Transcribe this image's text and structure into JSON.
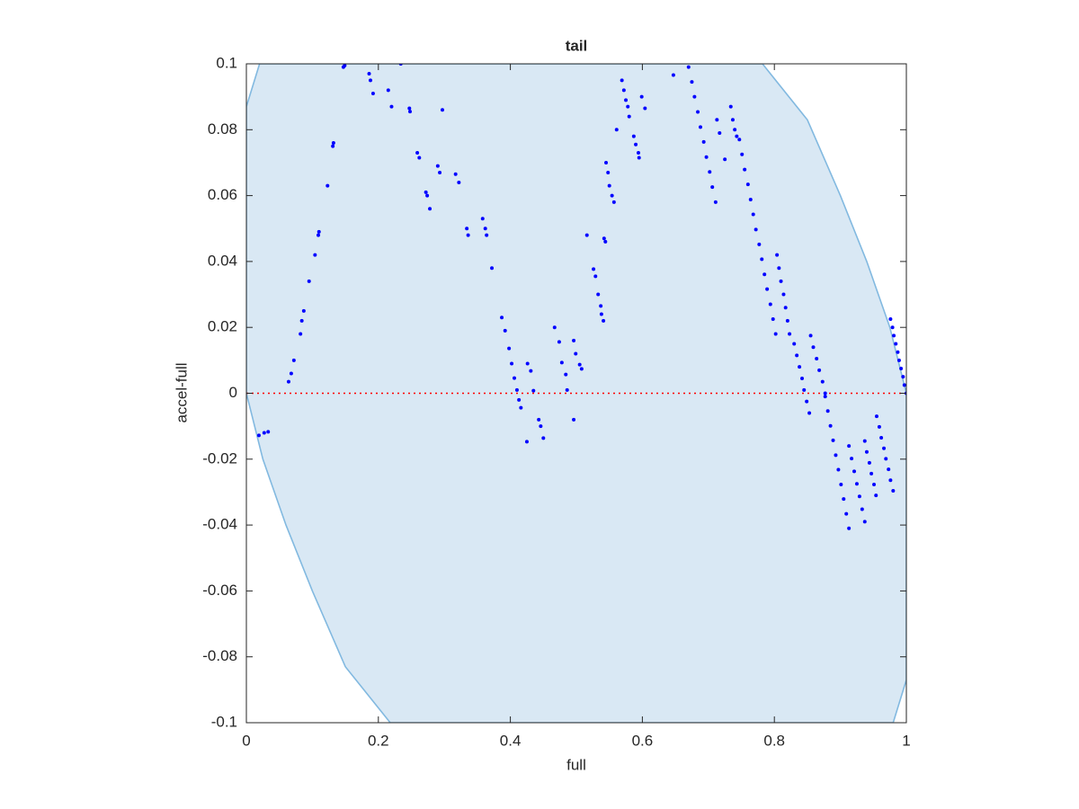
{
  "chart_data": {
    "type": "scatter",
    "title": "tail",
    "x_label": "full",
    "y_label": "accel-full",
    "xlim": [
      0,
      1
    ],
    "ylim": [
      -0.1,
      0.1
    ],
    "xticks": [
      0,
      0.2,
      0.4,
      0.6,
      0.8,
      1
    ],
    "yticks": [
      -0.1,
      -0.08,
      -0.06,
      -0.04,
      -0.02,
      0,
      0.02,
      0.04,
      0.06,
      0.08,
      0.1
    ],
    "color": "#0000ff",
    "region": {
      "color": "#d9e8f4",
      "edge_color": "#82b9e0",
      "x": [
        0.02,
        0.782,
        0.85,
        0.9,
        0.94,
        0.975,
        1,
        1,
        0.98,
        0.218,
        0.15,
        0.1,
        0.06,
        0.025,
        0,
        0
      ],
      "y": [
        0.1,
        0.1,
        0.083,
        0.06,
        0.04,
        0.02,
        0,
        -0.087,
        -0.1,
        -0.1,
        -0.083,
        -0.06,
        -0.04,
        -0.02,
        0,
        0.087
      ]
    },
    "reference_line": {
      "y": 0,
      "color": "#ff0000"
    },
    "x": [
      0.019,
      0.027,
      0.033,
      0.064,
      0.068,
      0.072,
      0.082,
      0.084,
      0.087,
      0.095,
      0.104,
      0.109,
      0.11,
      0.123,
      0.131,
      0.132,
      0.147,
      0.149,
      0.186,
      0.188,
      0.192,
      0.215,
      0.22,
      0.234,
      0.247,
      0.248,
      0.259,
      0.262,
      0.272,
      0.274,
      0.278,
      0.29,
      0.293,
      0.297,
      0.317,
      0.322,
      0.334,
      0.336,
      0.358,
      0.362,
      0.364,
      0.372,
      0.387,
      0.392,
      0.398,
      0.402,
      0.406,
      0.41,
      0.413,
      0.416,
      0.426,
      0.431,
      0.435,
      0.425,
      0.443,
      0.446,
      0.45,
      0.467,
      0.474,
      0.478,
      0.484,
      0.486,
      0.496,
      0.499,
      0.505,
      0.508,
      0.496,
      0.516,
      0.526,
      0.529,
      0.533,
      0.537,
      0.538,
      0.541,
      0.542,
      0.544,
      0.545,
      0.548,
      0.55,
      0.554,
      0.557,
      0.561,
      0.569,
      0.572,
      0.575,
      0.578,
      0.58,
      0.587,
      0.59,
      0.594,
      0.595,
      0.599,
      0.604,
      0.647,
      0.67,
      0.675,
      0.679,
      0.684,
      0.688,
      0.693,
      0.697,
      0.702,
      0.706,
      0.711,
      0.713,
      0.717,
      0.725,
      0.734,
      0.737,
      0.74,
      0.743,
      0.747,
      0.751,
      0.755,
      0.76,
      0.764,
      0.768,
      0.772,
      0.777,
      0.781,
      0.785,
      0.789,
      0.794,
      0.798,
      0.802,
      0.804,
      0.807,
      0.81,
      0.814,
      0.817,
      0.82,
      0.823,
      0.83,
      0.834,
      0.838,
      0.842,
      0.845,
      0.849,
      0.853,
      0.855,
      0.859,
      0.864,
      0.868,
      0.873,
      0.877,
      0.877,
      0.881,
      0.885,
      0.889,
      0.893,
      0.897,
      0.901,
      0.905,
      0.909,
      0.913,
      0.913,
      0.917,
      0.921,
      0.925,
      0.929,
      0.933,
      0.937,
      0.937,
      0.94,
      0.944,
      0.947,
      0.951,
      0.954,
      0.955,
      0.959,
      0.962,
      0.966,
      0.969,
      0.973,
      0.976,
      0.98,
      0.976,
      0.979,
      0.981,
      0.984,
      0.987,
      0.989,
      0.992,
      0.995,
      0.997,
      1.0
    ],
    "values": [
      -0.0128,
      -0.012,
      -0.0117,
      0.0035,
      0.006,
      0.01,
      0.018,
      0.022,
      0.025,
      0.034,
      0.042,
      0.048,
      0.049,
      0.063,
      0.075,
      0.076,
      0.099,
      0.0995,
      0.097,
      0.095,
      0.091,
      0.092,
      0.087,
      0.1,
      0.0865,
      0.0855,
      0.073,
      0.0715,
      0.061,
      0.06,
      0.056,
      0.069,
      0.067,
      0.086,
      0.0665,
      0.064,
      0.05,
      0.048,
      0.053,
      0.05,
      0.048,
      0.038,
      0.023,
      0.019,
      0.0136,
      0.009,
      0.0046,
      0.001,
      -0.002,
      -0.0044,
      0.009,
      0.0068,
      0.0008,
      -0.0147,
      -0.008,
      -0.01,
      -0.0136,
      0.02,
      0.0156,
      0.0093,
      0.0057,
      0.001,
      0.016,
      0.012,
      0.0087,
      0.0074,
      -0.008,
      0.048,
      0.0377,
      0.0355,
      0.03,
      0.0265,
      0.024,
      0.022,
      0.047,
      0.046,
      0.07,
      0.067,
      0.063,
      0.06,
      0.058,
      0.08,
      0.095,
      0.092,
      0.089,
      0.087,
      0.084,
      0.078,
      0.0755,
      0.073,
      0.0715,
      0.09,
      0.0865,
      0.0966,
      0.099,
      0.0945,
      0.09,
      0.0854,
      0.0808,
      0.0763,
      0.0717,
      0.0672,
      0.0626,
      0.058,
      0.083,
      0.079,
      0.071,
      0.087,
      0.083,
      0.08,
      0.078,
      0.077,
      0.0725,
      0.0679,
      0.0634,
      0.0588,
      0.0543,
      0.0497,
      0.0452,
      0.0407,
      0.0361,
      0.0316,
      0.027,
      0.0225,
      0.018,
      0.042,
      0.038,
      0.034,
      0.03,
      0.026,
      0.022,
      0.018,
      0.015,
      0.0115,
      0.008,
      0.0045,
      0.001,
      -0.0025,
      -0.006,
      0.0175,
      0.014,
      0.0105,
      0.007,
      0.0035,
      0.0,
      -0.001,
      -0.0054,
      -0.0099,
      -0.0143,
      -0.0188,
      -0.0232,
      -0.0277,
      -0.0321,
      -0.0366,
      -0.041,
      -0.016,
      -0.0198,
      -0.0237,
      -0.0275,
      -0.0313,
      -0.0352,
      -0.039,
      -0.0145,
      -0.0178,
      -0.0211,
      -0.0244,
      -0.0277,
      -0.031,
      -0.007,
      -0.0102,
      -0.0135,
      -0.0167,
      -0.0199,
      -0.0231,
      -0.0264,
      -0.0296,
      0.0225,
      0.02,
      0.0175,
      0.015,
      0.0125,
      0.01,
      0.0075,
      0.005,
      0.0025,
      0.0
    ]
  }
}
